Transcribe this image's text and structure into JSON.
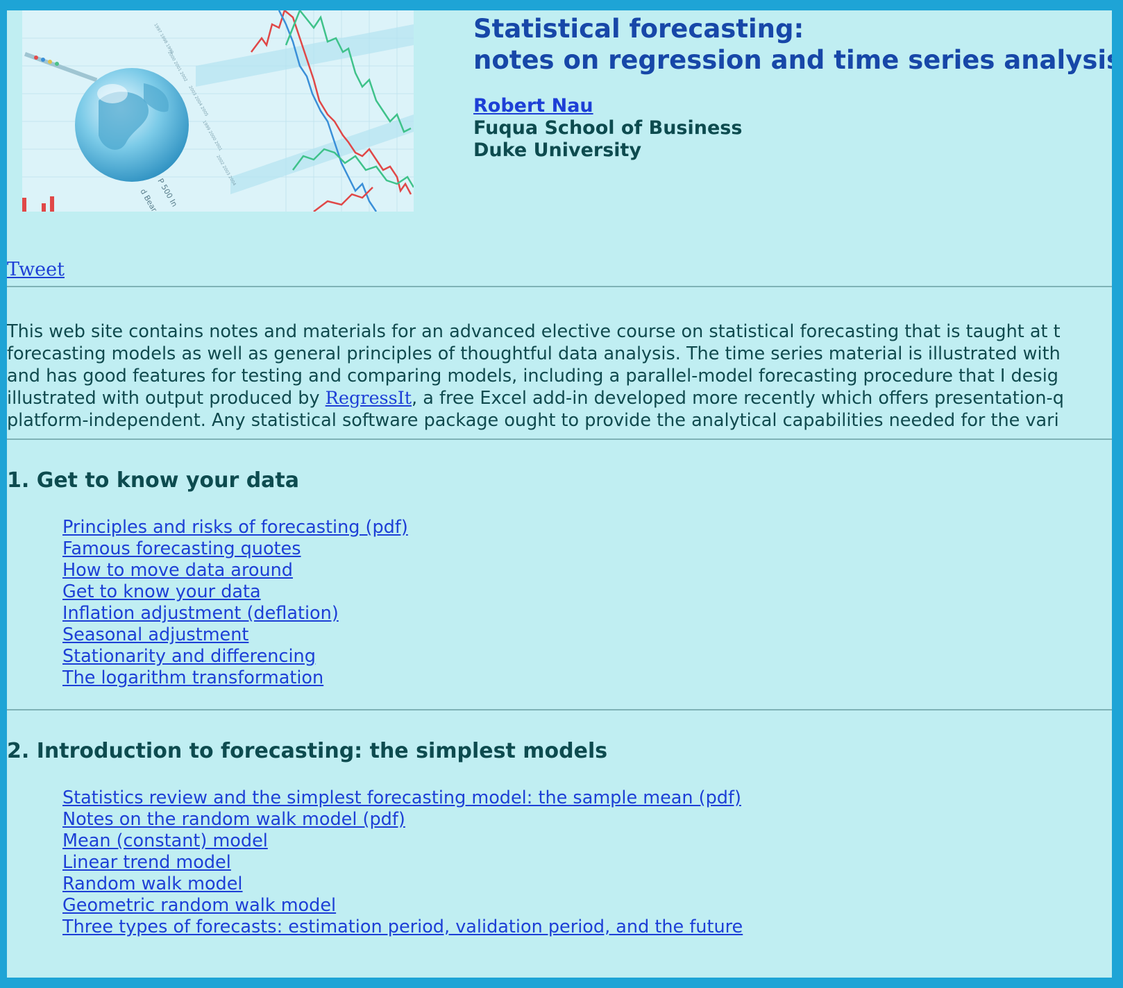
{
  "header": {
    "title_line1": "Statistical forecasting:",
    "title_line2": "notes on regression and time series analysis",
    "author": "Robert Nau",
    "school": "Fuqua School of Business",
    "university": "Duke University"
  },
  "tweet_label": "Tweet",
  "intro": {
    "lines": [
      "This web site contains notes and materials for an advanced elective course on statistical forecasting that is taught at t",
      "forecasting models as well as general principles of thoughtful data analysis. The time series material is illustrated with",
      "and has good features for testing and comparing models, including a parallel-model forecasting procedure that I desig"
    ],
    "line4_before": "illustrated with output produced by ",
    "line4_link": "RegressIt",
    "line4_after": ", a free Excel add-in developed more recently which offers presentation-q",
    "line5": "platform-independent. Any statistical software package ought to provide the analytical capabilities needed for the vari"
  },
  "sections": [
    {
      "heading": "1.  Get to know your data",
      "links": [
        "Principles and risks of forecasting (pdf)",
        "Famous forecasting quotes",
        "How to move data around",
        "Get to know your data",
        "Inflation adjustment (deflation)",
        "Seasonal adjustment",
        "Stationarity and differencing",
        "The logarithm transformation"
      ]
    },
    {
      "heading": "2.  Introduction to forecasting: the simplest models",
      "links": [
        "Statistics review and the simplest forecasting model: the sample mean (pdf)",
        "Notes on the random walk model (pdf)",
        "Mean (constant) model",
        "Linear trend model",
        "Random walk model",
        "Geometric random walk model",
        "Three types of forecasts: estimation period, validation period, and the future"
      ]
    }
  ],
  "colors": {
    "page_border": "#1ea4d6",
    "page_background": "#c0eef2",
    "title": "#1747a8",
    "link": "#1d3fd6",
    "text": "#0d4b4f"
  },
  "banner_icon": "globe-and-stock-chart-image"
}
